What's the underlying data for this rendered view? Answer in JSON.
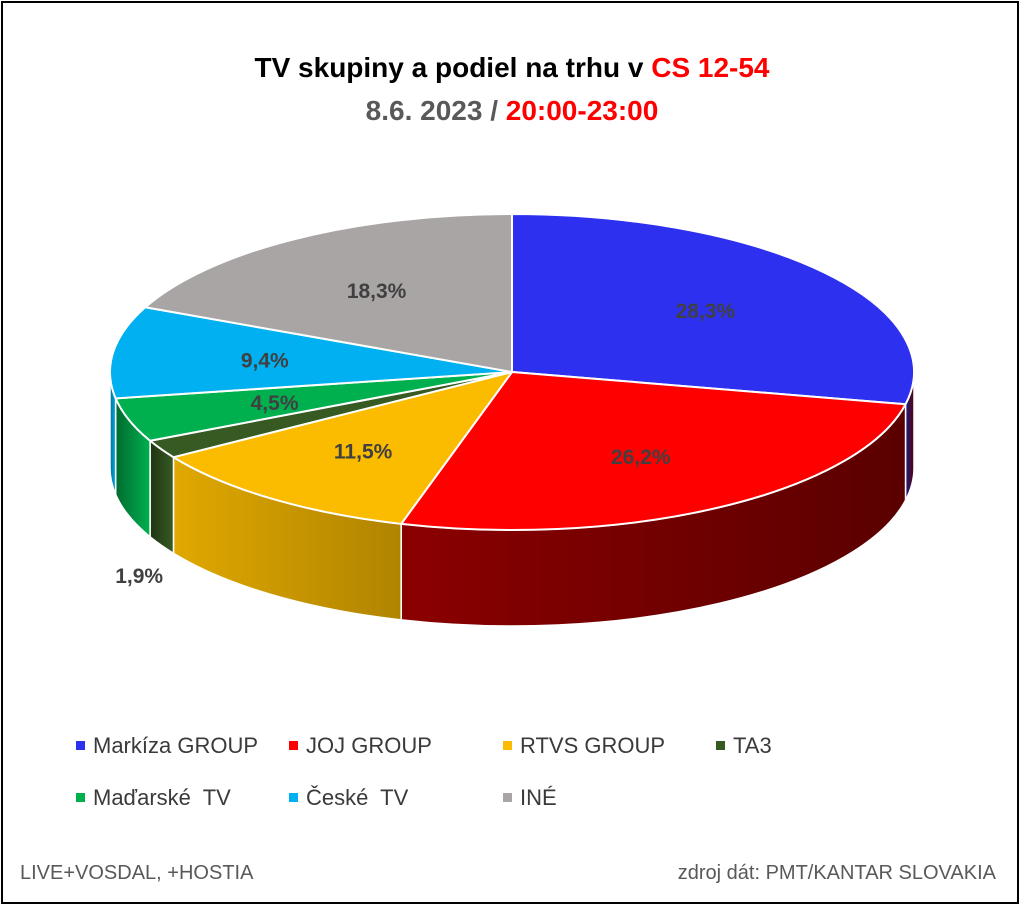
{
  "title": {
    "part1": "TV skupiny a podiel na trhu v ",
    "part1_highlight": "CS 12-54",
    "part2": "8.6. 2023 / ",
    "part2_highlight": "20:00-23:00"
  },
  "colors": {
    "highlight": "#ff0000",
    "subtitle": "#595959"
  },
  "chart_data": {
    "type": "pie",
    "style": "3d",
    "categories": [
      "Markíza GROUP",
      "JOJ GROUP",
      "RTVS GROUP",
      "TA3",
      "Maďarské  TV",
      "České  TV",
      "INÉ"
    ],
    "values": [
      28.3,
      26.2,
      11.5,
      1.9,
      4.5,
      9.4,
      18.3
    ],
    "data_labels": [
      "28,3%",
      "26,2%",
      "11,5%",
      "1,9%",
      "4,5%",
      "9,4%",
      "18,3%"
    ],
    "colors": [
      "#2e30ef",
      "#ff0000",
      "#fbbc00",
      "#375a23",
      "#00b04f",
      "#00b0f0",
      "#aaa5a5"
    ],
    "side_colors": [
      "#1a1c8a",
      "#8b0000",
      "#c79400",
      "#1f3513",
      "#006b30",
      "#006a91",
      "#6f6b6b"
    ],
    "legend_position": "bottom"
  },
  "footer": {
    "left": "LIVE+VOSDAL, +HOSTIA",
    "right": "zdroj dát: PMT/KANTAR SLOVAKIA"
  }
}
